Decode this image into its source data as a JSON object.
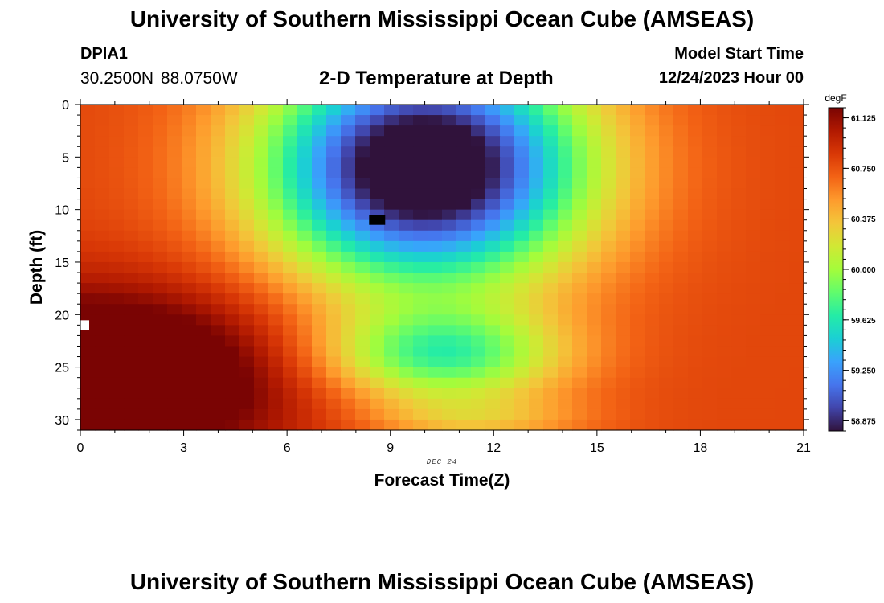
{
  "header": {
    "title": "University of Southern Mississippi Ocean Cube (AMSEAS)",
    "station": "DPIA1",
    "coords": "30.2500N  88.0750W",
    "plot_title": "2-D Temperature at Depth",
    "model_start_label": "Model Start Time",
    "model_start_value": "12/24/2023 Hour 00"
  },
  "footer": {
    "title": "University of Southern Mississippi Ocean Cube (AMSEAS)"
  },
  "chart_data": {
    "type": "heatmap",
    "title": "2-D Temperature at Depth",
    "xlabel": "Forecast Time(Z)",
    "ylabel": "Depth (ft)",
    "date_label": "DEC 24",
    "xlim": [
      0,
      21
    ],
    "ylim": [
      31,
      0
    ],
    "x_ticks": [
      0,
      3,
      6,
      9,
      12,
      15,
      18,
      21
    ],
    "y_ticks": [
      0,
      5,
      10,
      15,
      20,
      25,
      30
    ],
    "colorbar": {
      "unit": "degF",
      "min": 58.8,
      "max": 61.2,
      "ticks": [
        "61.125",
        "60.750",
        "60.375",
        "60.000",
        "59.625",
        "59.250",
        "58.875"
      ]
    },
    "colormap": [
      "#30123b",
      "#4145ab",
      "#4675ed",
      "#39a2fc",
      "#1bcfd4",
      "#24eca6",
      "#61fc6c",
      "#a4fc3b",
      "#d1e834",
      "#f3c63a",
      "#fe9b2d",
      "#f36315",
      "#d93806",
      "#b11901",
      "#7a0403"
    ],
    "field_summary": {
      "cold_core": {
        "time": 10.0,
        "depth": 6.0,
        "value": 58.8
      },
      "warm_core": {
        "time": 1.0,
        "depth": 26.0,
        "value": 61.2
      },
      "surface_early": {
        "time": 0.0,
        "depth": 0.0,
        "value": 60.75
      },
      "surface_late": {
        "time": 21.0,
        "depth": 0.0,
        "value": 60.65
      },
      "bottom_late": {
        "time": 21.0,
        "depth": 30.0,
        "value": 60.8
      }
    },
    "missing_cells": [
      {
        "time": 0.0,
        "depth": 21.0,
        "color": "#ffffff"
      },
      {
        "time": 8.5,
        "depth": 11.0,
        "color": "#000000"
      }
    ]
  }
}
